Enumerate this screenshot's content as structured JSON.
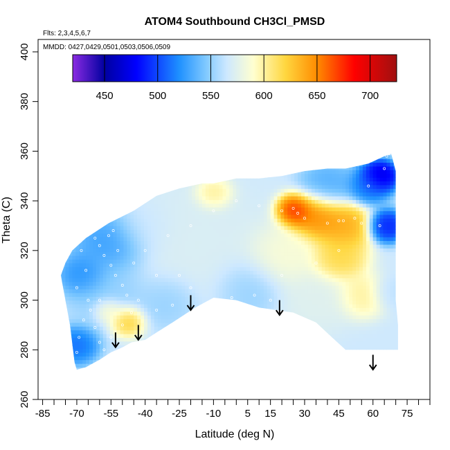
{
  "chart_data": {
    "type": "heatmap",
    "title": "ATOM4 Southbound CH3Cl_PMSD",
    "annotations": [
      "Flts: 2,3,4,5,6,7",
      "MMDD: 0427,0429,0501,0503,0506,0509"
    ],
    "xlabel": "Latitude (deg N)",
    "ylabel": "Theta (C)",
    "xlim": [
      -87,
      85
    ],
    "ylim": [
      260,
      405
    ],
    "x_ticks": [
      -85,
      -70,
      -55,
      -40,
      -25,
      -10,
      5,
      15,
      30,
      45,
      60,
      75
    ],
    "x_minor_ticks": [
      -80,
      -75,
      -65,
      -60,
      -50,
      -45,
      -35,
      -30,
      -20,
      -15,
      -5,
      0,
      10,
      20,
      25,
      35,
      40,
      50,
      55,
      65,
      70,
      80,
      85
    ],
    "y_ticks": [
      260,
      280,
      300,
      320,
      340,
      360,
      380,
      400
    ],
    "colorbar": {
      "range": [
        420,
        725
      ],
      "ticks": [
        450,
        500,
        550,
        600,
        650,
        700
      ],
      "colors": [
        "#8B2BE2",
        "#0000A0",
        "#0000FF",
        "#1E90FF",
        "#7EC8FF",
        "#CDE8FF",
        "#FFFFD0",
        "#FFD740",
        "#FF8C00",
        "#FF0000",
        "#A01010"
      ],
      "stops": [
        420,
        450,
        480,
        520,
        545,
        565,
        590,
        620,
        650,
        685,
        725
      ]
    },
    "domain_outline": [
      [
        -75,
        315
      ],
      [
        -72,
        320
      ],
      [
        -66,
        325
      ],
      [
        -56,
        331
      ],
      [
        -45,
        336
      ],
      [
        -35,
        342
      ],
      [
        -25,
        345
      ],
      [
        -15,
        347
      ],
      [
        -10,
        347
      ],
      [
        0,
        349
      ],
      [
        10,
        349
      ],
      [
        20,
        350
      ],
      [
        30,
        352
      ],
      [
        40,
        353
      ],
      [
        48,
        353
      ],
      [
        58,
        355
      ],
      [
        65,
        358
      ],
      [
        68,
        359
      ],
      [
        70,
        352
      ],
      [
        70,
        330
      ],
      [
        70,
        300
      ],
      [
        71,
        290
      ],
      [
        71,
        280
      ],
      [
        65,
        280
      ],
      [
        48,
        280
      ],
      [
        42,
        285
      ],
      [
        35,
        291
      ],
      [
        25,
        295
      ],
      [
        10,
        297
      ],
      [
        0,
        300
      ],
      [
        -10,
        301
      ],
      [
        -18,
        297
      ],
      [
        -28,
        291
      ],
      [
        -35,
        287
      ],
      [
        -40,
        284
      ],
      [
        -46,
        283
      ],
      [
        -50,
        281
      ],
      [
        -55,
        279
      ],
      [
        -60,
        276
      ],
      [
        -66,
        273
      ],
      [
        -70,
        272
      ],
      [
        -71,
        275
      ],
      [
        -73,
        290
      ],
      [
        -75,
        300
      ],
      [
        -77,
        310
      ]
    ],
    "field_features": [
      {
        "lat": -18,
        "theta": 322,
        "value": 572,
        "radius": 24
      },
      {
        "lat": -10,
        "theta": 343,
        "value": 610,
        "radius": 6
      },
      {
        "lat": -56,
        "theta": 303,
        "value": 548,
        "radius": 14
      },
      {
        "lat": -55,
        "theta": 323,
        "value": 520,
        "radius": 12
      },
      {
        "lat": -67,
        "theta": 310,
        "value": 512,
        "radius": 8
      },
      {
        "lat": -70,
        "theta": 282,
        "value": 505,
        "radius": 7
      },
      {
        "lat": -48,
        "theta": 292,
        "value": 640,
        "radius": 6
      },
      {
        "lat": -56,
        "theta": 296,
        "value": 605,
        "radius": 5
      },
      {
        "lat": 26,
        "theta": 336,
        "value": 688,
        "radius": 6
      },
      {
        "lat": 35,
        "theta": 334,
        "value": 660,
        "radius": 9
      },
      {
        "lat": 47,
        "theta": 330,
        "value": 645,
        "radius": 9
      },
      {
        "lat": 45,
        "theta": 317,
        "value": 625,
        "radius": 9
      },
      {
        "lat": 55,
        "theta": 302,
        "value": 605,
        "radius": 8
      },
      {
        "lat": 20,
        "theta": 318,
        "value": 590,
        "radius": 12
      },
      {
        "lat": 63,
        "theta": 350,
        "value": 455,
        "radius": 6
      },
      {
        "lat": 66,
        "theta": 330,
        "value": 480,
        "radius": 6
      },
      {
        "lat": 58,
        "theta": 346,
        "value": 505,
        "radius": 7
      },
      {
        "lat": 40,
        "theta": 346,
        "value": 530,
        "radius": 9
      },
      {
        "lat": 67,
        "theta": 303,
        "value": 560,
        "radius": 6
      },
      {
        "lat": 5,
        "theta": 305,
        "value": 548,
        "radius": 11
      },
      {
        "lat": -30,
        "theta": 300,
        "value": 548,
        "radius": 10
      },
      {
        "lat": -40,
        "theta": 330,
        "value": 565,
        "radius": 10
      },
      {
        "lat": 35,
        "theta": 300,
        "value": 575,
        "radius": 12
      }
    ],
    "field_background_value": 566,
    "sample_points": [
      [
        -70,
        305
      ],
      [
        -66,
        312
      ],
      [
        -60,
        322
      ],
      [
        -58,
        318
      ],
      [
        -55,
        314
      ],
      [
        -53,
        310
      ],
      [
        -50,
        306
      ],
      [
        -48,
        302
      ],
      [
        -60,
        300
      ],
      [
        -64,
        296
      ],
      [
        -62,
        289
      ],
      [
        -60,
        283
      ],
      [
        -58,
        280
      ],
      [
        -55,
        285
      ],
      [
        -50,
        290
      ],
      [
        -46,
        295
      ],
      [
        -43,
        300
      ],
      [
        -56,
        326
      ],
      [
        -54,
        328
      ],
      [
        -62,
        325
      ],
      [
        -68,
        320
      ],
      [
        -52,
        320
      ],
      [
        -40,
        320
      ],
      [
        -30,
        326
      ],
      [
        -20,
        330
      ],
      [
        -10,
        336
      ],
      [
        0,
        340
      ],
      [
        10,
        338
      ],
      [
        20,
        336
      ],
      [
        25,
        337
      ],
      [
        27,
        335
      ],
      [
        30,
        333
      ],
      [
        40,
        331
      ],
      [
        45,
        332
      ],
      [
        47,
        332
      ],
      [
        52,
        333
      ],
      [
        55,
        331
      ],
      [
        63,
        330
      ],
      [
        65,
        353
      ],
      [
        66,
        358
      ],
      [
        67,
        359
      ],
      [
        58,
        346
      ],
      [
        45,
        320
      ],
      [
        35,
        315
      ],
      [
        20,
        310
      ],
      [
        8,
        302
      ],
      [
        -2,
        301
      ],
      [
        -10,
        300
      ],
      [
        -20,
        305
      ],
      [
        -25,
        310
      ],
      [
        -35,
        310
      ],
      [
        -45,
        315
      ],
      [
        -65,
        300
      ],
      [
        -67,
        292
      ],
      [
        -69,
        285
      ],
      [
        -70,
        279
      ],
      [
        -72,
        275
      ],
      [
        -35,
        296
      ],
      [
        -28,
        298
      ],
      [
        15,
        300
      ]
    ],
    "arrows": [
      {
        "lat": -53,
        "theta_top": 287,
        "theta_bottom": 281
      },
      {
        "lat": -43,
        "theta_top": 290,
        "theta_bottom": 284
      },
      {
        "lat": -20,
        "theta_top": 302,
        "theta_bottom": 296
      },
      {
        "lat": 19,
        "theta_top": 300,
        "theta_bottom": 294
      },
      {
        "lat": 60,
        "theta_top": 278,
        "theta_bottom": 272
      }
    ]
  }
}
